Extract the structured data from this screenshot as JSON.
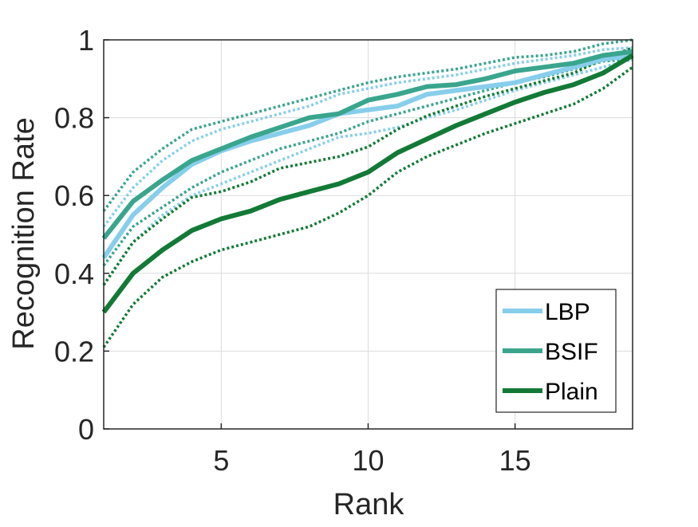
{
  "chart_data": {
    "type": "line",
    "xlabel": "Rank",
    "ylabel": "Recognition Rate",
    "xlim": [
      1,
      19
    ],
    "ylim": [
      0,
      1
    ],
    "xticks": [
      5,
      10,
      15
    ],
    "xtick_labels": [
      "5",
      "10",
      "15"
    ],
    "yticks": [
      0,
      0.2,
      0.4,
      0.6,
      0.8,
      1
    ],
    "ytick_labels": [
      "0",
      "0.2",
      "0.4",
      "0.6",
      "0.8",
      "1"
    ],
    "grid": true,
    "legend_position": "bottom-right",
    "x": [
      1,
      2,
      3,
      4,
      5,
      6,
      7,
      8,
      9,
      10,
      11,
      12,
      13,
      14,
      15,
      16,
      17,
      18,
      19
    ],
    "series": [
      {
        "name": "LBP",
        "color": "#87CEEB",
        "style": "solid",
        "values": [
          0.44,
          0.55,
          0.62,
          0.68,
          0.715,
          0.74,
          0.76,
          0.78,
          0.81,
          0.82,
          0.83,
          0.86,
          0.87,
          0.88,
          0.89,
          0.91,
          0.93,
          0.95,
          0.96
        ]
      },
      {
        "name": "BSIF",
        "color": "#3AA58D",
        "style": "solid",
        "values": [
          0.49,
          0.585,
          0.64,
          0.69,
          0.72,
          0.75,
          0.775,
          0.8,
          0.81,
          0.845,
          0.86,
          0.88,
          0.885,
          0.9,
          0.92,
          0.93,
          0.94,
          0.96,
          0.97
        ]
      },
      {
        "name": "Plain",
        "color": "#127A36",
        "style": "solid",
        "values": [
          0.3,
          0.4,
          0.46,
          0.51,
          0.54,
          0.56,
          0.59,
          0.61,
          0.63,
          0.66,
          0.71,
          0.745,
          0.78,
          0.81,
          0.84,
          0.865,
          0.885,
          0.915,
          0.96
        ]
      }
    ],
    "bands": [
      {
        "color": "#87CEEB",
        "values": [
          0.52,
          0.62,
          0.69,
          0.74,
          0.77,
          0.79,
          0.81,
          0.83,
          0.86,
          0.875,
          0.89,
          0.9,
          0.91,
          0.925,
          0.94,
          0.95,
          0.96,
          0.975,
          0.98
        ]
      },
      {
        "color": "#87CEEB",
        "values": [
          0.37,
          0.48,
          0.55,
          0.6,
          0.63,
          0.66,
          0.69,
          0.72,
          0.75,
          0.76,
          0.775,
          0.8,
          0.82,
          0.845,
          0.87,
          0.89,
          0.91,
          0.93,
          0.95
        ]
      },
      {
        "color": "#3AA58D",
        "values": [
          0.56,
          0.66,
          0.72,
          0.77,
          0.79,
          0.81,
          0.83,
          0.85,
          0.87,
          0.89,
          0.905,
          0.915,
          0.925,
          0.94,
          0.955,
          0.96,
          0.97,
          0.99,
          1.0
        ]
      },
      {
        "color": "#3AA58D",
        "values": [
          0.42,
          0.52,
          0.57,
          0.62,
          0.66,
          0.69,
          0.72,
          0.74,
          0.76,
          0.79,
          0.81,
          0.83,
          0.85,
          0.87,
          0.89,
          0.905,
          0.925,
          0.945,
          0.95
        ]
      },
      {
        "color": "#127A36",
        "values": [
          0.37,
          0.48,
          0.54,
          0.595,
          0.61,
          0.635,
          0.67,
          0.685,
          0.7,
          0.725,
          0.77,
          0.805,
          0.83,
          0.855,
          0.875,
          0.895,
          0.915,
          0.95,
          0.98
        ]
      },
      {
        "color": "#127A36",
        "values": [
          0.21,
          0.32,
          0.39,
          0.43,
          0.46,
          0.48,
          0.5,
          0.52,
          0.555,
          0.6,
          0.66,
          0.7,
          0.73,
          0.76,
          0.785,
          0.81,
          0.835,
          0.875,
          0.93
        ]
      }
    ]
  }
}
